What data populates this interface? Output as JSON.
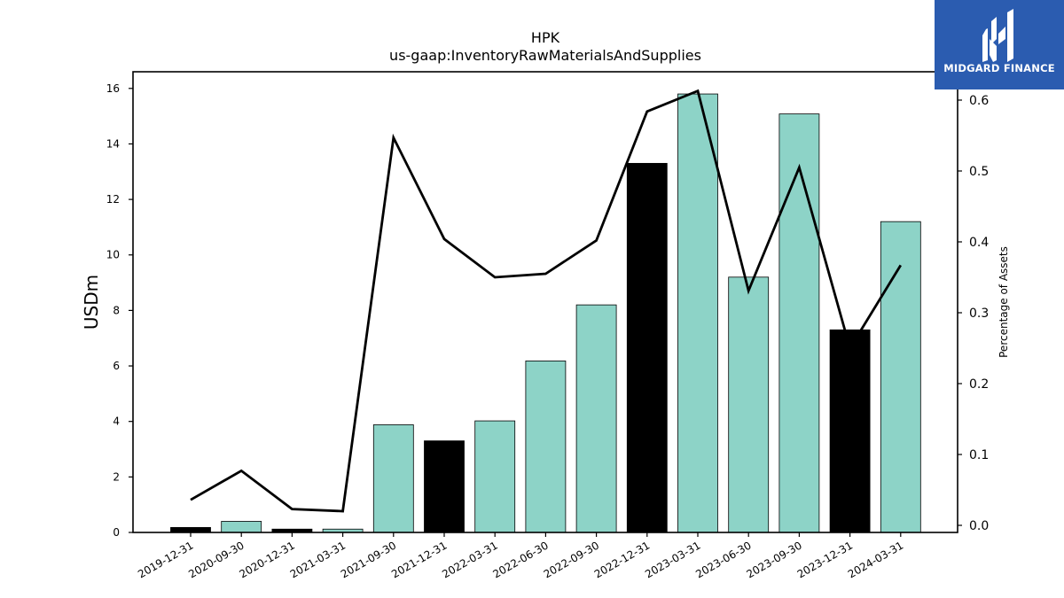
{
  "chart_data": {
    "type": "bar",
    "title": "HPK",
    "subtitle": "us-gaap:InventoryRawMaterialsAndSupplies",
    "ylabel": "USDm",
    "y2label": "Percentage of Assets",
    "categories": [
      "2019-12-31",
      "2020-09-30",
      "2020-12-31",
      "2021-03-31",
      "2021-09-30",
      "2021-12-31",
      "2022-03-31",
      "2022-06-30",
      "2022-09-30",
      "2022-12-31",
      "2023-03-31",
      "2023-06-30",
      "2023-09-30",
      "2023-12-31",
      "2024-03-31"
    ],
    "series": [
      {
        "type": "bar",
        "axis": "left",
        "values": [
          0.18,
          0.4,
          0.12,
          0.12,
          3.88,
          3.3,
          4.02,
          6.18,
          8.2,
          13.3,
          15.8,
          9.2,
          15.08,
          7.3,
          11.2
        ],
        "colors": [
          "#000000",
          "#8dd3c7",
          "#000000",
          "#8dd3c7",
          "#8dd3c7",
          "#000000",
          "#8dd3c7",
          "#8dd3c7",
          "#8dd3c7",
          "#000000",
          "#8dd3c7",
          "#8dd3c7",
          "#8dd3c7",
          "#000000",
          "#8dd3c7"
        ]
      },
      {
        "type": "line",
        "axis": "right",
        "color": "#000000",
        "values": [
          0.036,
          0.077,
          0.023,
          0.02,
          0.547,
          0.404,
          0.35,
          0.355,
          0.402,
          0.584,
          0.613,
          0.331,
          0.505,
          0.25,
          0.367
        ]
      }
    ],
    "ylim": [
      0,
      16.6
    ],
    "yticks": [
      0,
      2,
      4,
      6,
      8,
      10,
      12,
      14,
      16
    ],
    "y2lim": [
      -0.01,
      0.64
    ],
    "y2ticks": [
      "0.0",
      "0.1",
      "0.2",
      "0.3",
      "0.4",
      "0.5",
      "0.6"
    ],
    "grid": false
  },
  "logo": {
    "text": "MIDGARD FINANCE"
  }
}
